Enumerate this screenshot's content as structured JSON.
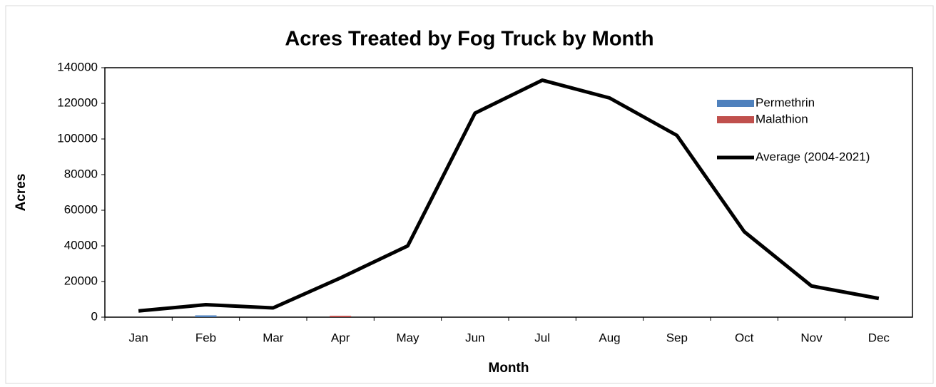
{
  "chart_data": {
    "type": "bar",
    "title": "Acres Treated by Fog Truck by Month",
    "x_label": "Month",
    "y_label": "Acres",
    "categories": [
      "Jan",
      "Feb",
      "Mar",
      "Apr",
      "May",
      "Jun",
      "Jul",
      "Aug",
      "Sep",
      "Oct",
      "Nov",
      "Dec"
    ],
    "series": [
      {
        "name": "Permethrin",
        "type": "bar",
        "color": "#4f81bd",
        "values": [
          0,
          1000,
          0,
          0,
          0,
          0,
          0,
          0,
          0,
          0,
          0,
          0
        ]
      },
      {
        "name": "Malathion",
        "type": "bar",
        "color": "#c0504d",
        "values": [
          0,
          0,
          0,
          800,
          0,
          0,
          0,
          0,
          0,
          0,
          0,
          0
        ]
      },
      {
        "name": "Average (2004-2021)",
        "type": "line",
        "color": "#000000",
        "values": [
          3500,
          7000,
          5200,
          22000,
          40000,
          114500,
          133000,
          123000,
          102000,
          48000,
          17500,
          10500
        ]
      }
    ],
    "ylim": [
      0,
      140000
    ],
    "yticks": [
      0,
      20000,
      40000,
      60000,
      80000,
      100000,
      120000,
      140000
    ],
    "legend": "top-right"
  }
}
